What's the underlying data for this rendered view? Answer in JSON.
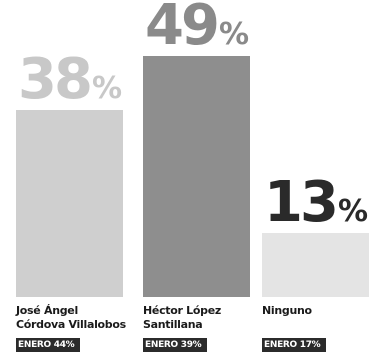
{
  "chart_data": {
    "type": "bar",
    "categories": [
      "José Ángel Córdova Villalobos",
      "Héctor López Santillana",
      "Ninguno"
    ],
    "category_lines": [
      [
        "José Ángel",
        "Córdova Villalobos"
      ],
      [
        "Héctor López",
        "Santillana"
      ],
      [
        "Ninguno"
      ]
    ],
    "values": [
      38,
      49,
      13
    ],
    "value_labels": [
      {
        "number": "38",
        "unit": "%"
      },
      {
        "number": "49",
        "unit": "%"
      },
      {
        "number": "13",
        "unit": "%"
      }
    ],
    "previous_labels": [
      "ENERO 44%",
      "ENERO 39%",
      "ENERO 17%"
    ],
    "title": "",
    "xlabel": "",
    "ylabel": "",
    "ylim": [
      0,
      49
    ],
    "grid": false,
    "legend": "none",
    "colors": [
      "#cfcfcf",
      "#8e8e8e",
      "#e4e4e4"
    ],
    "label_colors": [
      "#c8c8c8",
      "#8a8a8a",
      "#2a2a2a"
    ]
  }
}
